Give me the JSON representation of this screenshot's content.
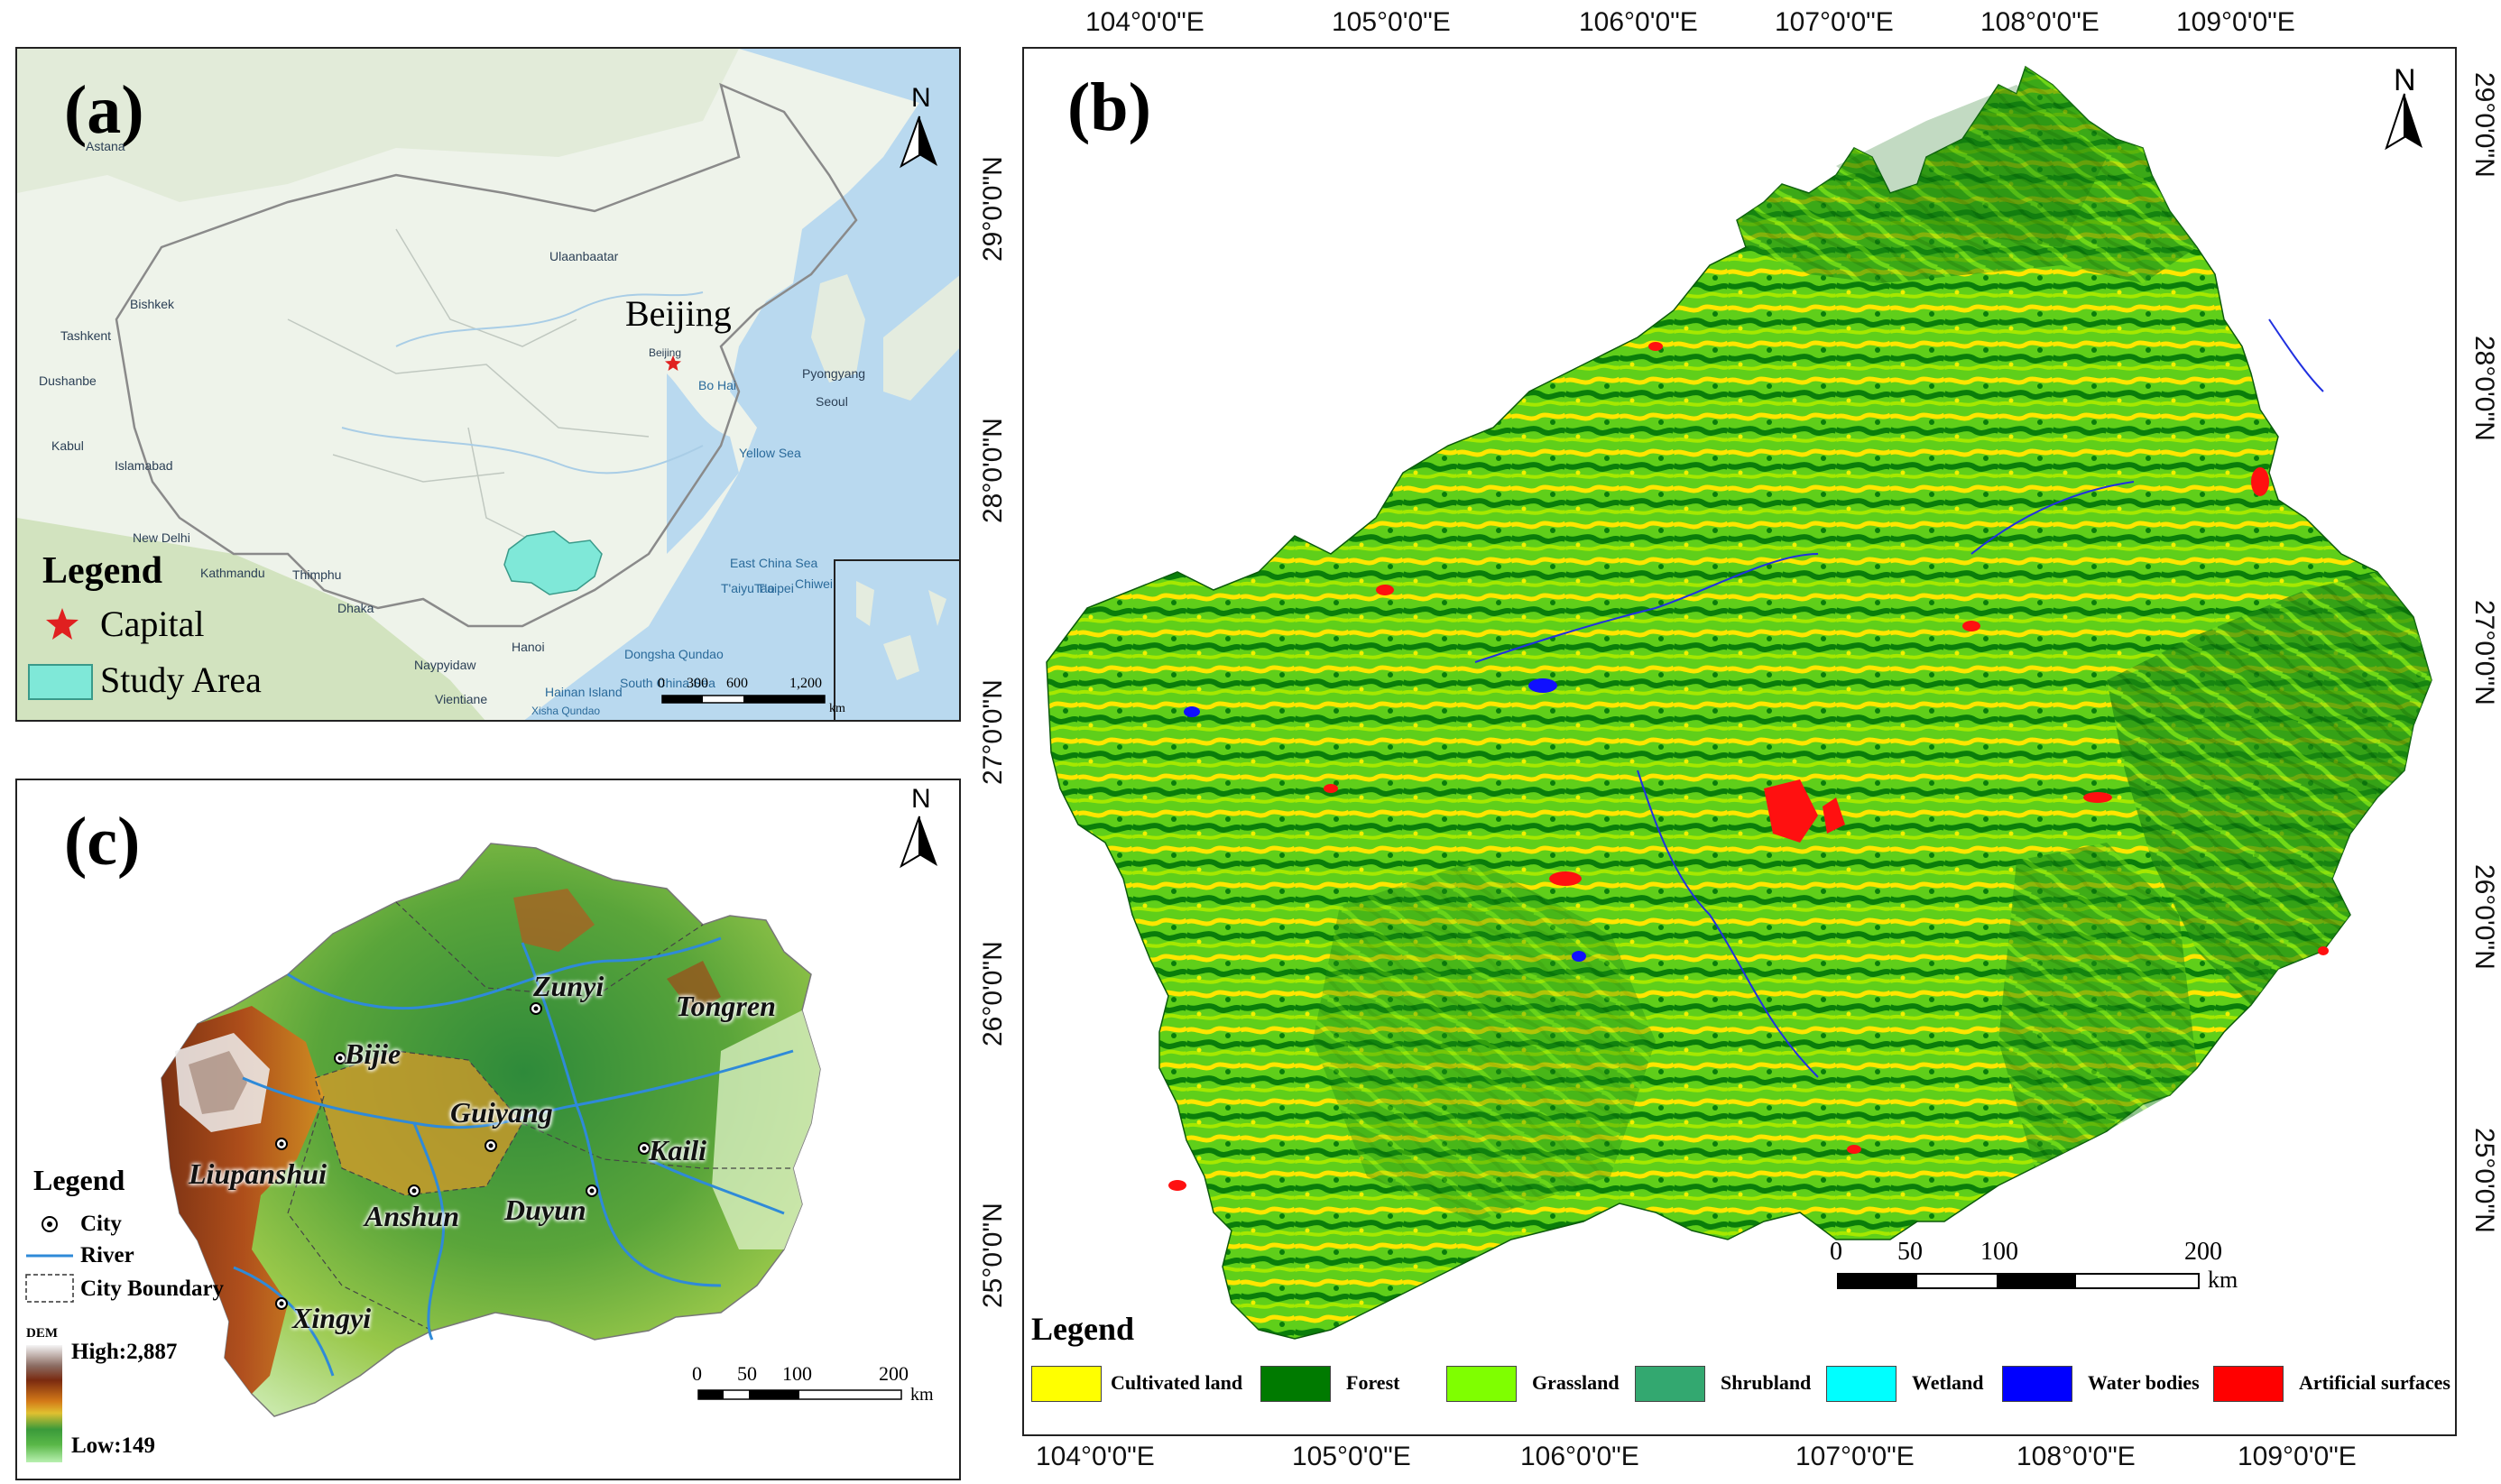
{
  "panel_a": {
    "label": "(a)",
    "north": "N",
    "places": [
      {
        "name": "Astana"
      },
      {
        "name": "Ulaanbaatar"
      },
      {
        "name": "Bishkek"
      },
      {
        "name": "Tashkent"
      },
      {
        "name": "Dushanbe"
      },
      {
        "name": "Kabul"
      },
      {
        "name": "Islamabad"
      },
      {
        "name": "New Delhi"
      },
      {
        "name": "Kathmandu"
      },
      {
        "name": "Thimphu"
      },
      {
        "name": "Dhaka"
      },
      {
        "name": "Naypyidaw"
      },
      {
        "name": "Hanoi"
      },
      {
        "name": "Vientiane"
      },
      {
        "name": "Pyongyang"
      },
      {
        "name": "Seoul"
      },
      {
        "name": "Beijing"
      }
    ],
    "seas": [
      {
        "name": "Bo Hai"
      },
      {
        "name": "Yellow Sea"
      },
      {
        "name": "East China Sea"
      },
      {
        "name": "T'aipei"
      },
      {
        "name": "T'aiyuTao"
      },
      {
        "name": "Chiwei"
      },
      {
        "name": "Dongsha Qundao"
      },
      {
        "name": "Hainan Island"
      },
      {
        "name": "South China Sea"
      },
      {
        "name": "Xisha Qundao"
      }
    ],
    "beijing_big": "Beijing",
    "legend": {
      "title": "Legend",
      "capital": "Capital",
      "study_area": "Study Area"
    },
    "scale": {
      "ticks": [
        "0",
        "300",
        "600",
        "1,200"
      ],
      "unit": "km"
    },
    "colors": {
      "study_area": "#7fe8d8",
      "capital": "#e02020",
      "land": "#eef3ea",
      "water": "#b9d9ef"
    }
  },
  "panel_b": {
    "label": "(b)",
    "north": "N",
    "top_ticks": [
      "104°0'0\"E",
      "105°0'0\"E",
      "106°0'0\"E",
      "107°0'0\"E",
      "108°0'0\"E",
      "109°0'0\"E"
    ],
    "bottom_ticks": [
      "104°0'0\"E",
      "105°0'0\"E",
      "106°0'0\"E",
      "107°0'0\"E",
      "108°0'0\"E",
      "109°0'0\"E"
    ],
    "left_ticks": [
      "29°0'0\"N",
      "28°0'0\"N",
      "27°0'0\"N",
      "26°0'0\"N",
      "25°0'0\"N"
    ],
    "right_ticks": [
      "29°0'0\"N",
      "28°0'0\"N",
      "27°0'0\"N",
      "26°0'0\"N",
      "25°0'0\"N"
    ],
    "scale": {
      "ticks": [
        "0",
        "50",
        "100",
        "200"
      ],
      "unit": "km"
    },
    "legend": {
      "title": "Legend",
      "classes": [
        {
          "name": "Cultivated land",
          "color": "#ffff00"
        },
        {
          "name": "Forest",
          "color": "#007a00"
        },
        {
          "name": "Grassland",
          "color": "#7fff00"
        },
        {
          "name": "Shrubland",
          "color": "#33a870"
        },
        {
          "name": "Wetland",
          "color": "#00ffff"
        },
        {
          "name": "Water bodies",
          "color": "#0000ff"
        },
        {
          "name": "Artificial surfaces",
          "color": "#ff0000"
        }
      ]
    }
  },
  "panel_c": {
    "label": "(c)",
    "north": "N",
    "cities": [
      {
        "name": "Zunyi"
      },
      {
        "name": "Tongren"
      },
      {
        "name": "Bijie"
      },
      {
        "name": "Guiyang"
      },
      {
        "name": "Liupanshui"
      },
      {
        "name": "Anshun"
      },
      {
        "name": "Duyun"
      },
      {
        "name": "Kaili"
      },
      {
        "name": "Xingyi"
      }
    ],
    "legend": {
      "title": "Legend",
      "city": "City",
      "river": "River",
      "boundary": "City Boundary",
      "dem": "DEM",
      "high": "High:2,887",
      "low": "Low:149"
    },
    "scale": {
      "ticks": [
        "0",
        "50",
        "100",
        "200"
      ],
      "unit": "km"
    }
  }
}
